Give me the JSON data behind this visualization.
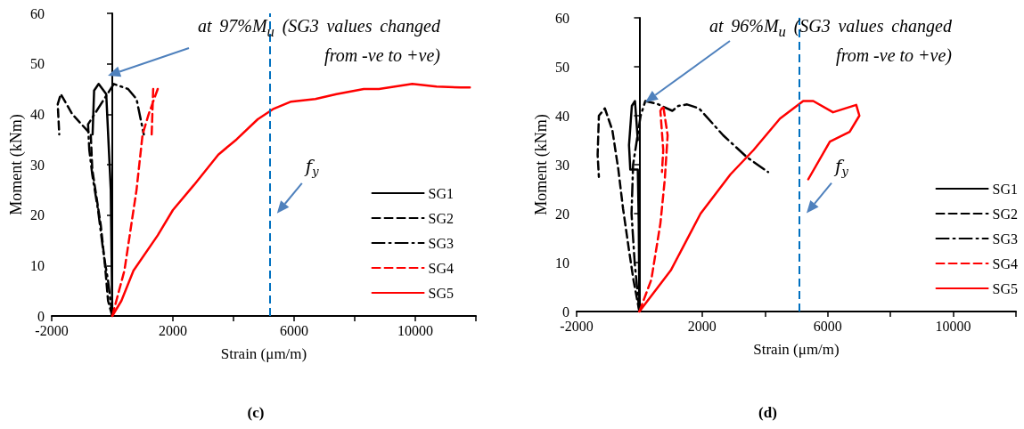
{
  "chart_data": [
    {
      "type": "line",
      "xlabel": "Strain (μm/m)",
      "ylabel": "Moment (kNm)",
      "xlim": [
        -2000,
        12000
      ],
      "xticks": [
        -2000,
        2000,
        {
          "value": 4000,
          "label": null
        },
        6000,
        {
          "value": 8000,
          "label": null
        },
        10000,
        {
          "value": 12000,
          "label": null
        }
      ],
      "ylim": [
        0,
        60
      ],
      "yticks": [
        0,
        10,
        20,
        30,
        40,
        50,
        60
      ],
      "grid": false,
      "legend": "bottom right",
      "marker": "none",
      "annotations": [
        "at 97%M$_{u}$ (SG3 values changed from -ve to +ve)",
        "(c)"
      ],
      "ref_lines": [
        {
          "axis": "x",
          "value": 5200,
          "label": "f$_{y}$",
          "color": "#0070c0",
          "line_style": "dashed"
        }
      ],
      "series": [
        {
          "name": "SG1",
          "color": "#000000",
          "line_style": "solid",
          "x": [
            0,
            -50,
            -200,
            -450,
            -600,
            -650
          ],
          "values": [
            0,
            25,
            44,
            46,
            44.7,
            36
          ]
        },
        {
          "name": "SG2",
          "color": "#000000",
          "line_style": "dashed",
          "x": [
            0,
            -140,
            -240,
            -380,
            -660,
            -710,
            -1320,
            -1510,
            -1700,
            -1800,
            -1750
          ],
          "values": [
            0,
            3,
            10,
            18,
            29,
            36,
            40,
            42,
            44,
            42,
            36
          ]
        },
        {
          "name": "SG3",
          "color": "#000000",
          "line_style": "dashdot",
          "x": [
            0,
            -140,
            -280,
            -470,
            -660,
            -760,
            -800,
            50,
            520,
            800,
            1040
          ],
          "values": [
            0,
            7,
            12,
            21,
            28,
            33,
            38,
            46,
            45,
            43,
            36
          ]
        },
        {
          "name": "SG4",
          "color": "#ff0000",
          "line_style": "dashed",
          "x": [
            0,
            400,
            800,
            1000,
            1200,
            1500,
            1350,
            1300
          ],
          "values": [
            0,
            9,
            25,
            36,
            40,
            45,
            45,
            36
          ]
        },
        {
          "name": "SG5",
          "color": "#ff0000",
          "line_style": "solid",
          "x": [
            0,
            300,
            700,
            1500,
            2000,
            2700,
            3500,
            4100,
            4800,
            5300,
            5900,
            6700,
            7400,
            8300,
            8800,
            9900,
            10700,
            11500,
            11800
          ],
          "values": [
            0,
            3,
            9,
            16,
            21,
            26,
            32,
            35,
            39,
            41,
            42.5,
            43,
            44,
            45,
            45,
            46,
            45.5,
            45.3,
            45.3
          ]
        }
      ]
    },
    {
      "type": "line",
      "xlabel": "Strain (μm/m)",
      "ylabel": "Moment (kNm)",
      "xlim": [
        -2000,
        12000
      ],
      "xticks": [
        -2000,
        2000,
        {
          "value": 4000,
          "label": null
        },
        6000,
        {
          "value": 8000,
          "label": null
        },
        10000,
        {
          "value": 12000,
          "label": null
        }
      ],
      "ylim": [
        0,
        60
      ],
      "yticks": [
        0,
        10,
        20,
        30,
        40,
        50,
        60
      ],
      "grid": false,
      "legend": "bottom right",
      "marker": "none",
      "annotations": [
        "at 96%M$_{u}$ (SG3 values changed from -ve to +ve)",
        "(d)"
      ],
      "ref_lines": [
        {
          "axis": "x",
          "value": 5100,
          "label": "f$_{y}$",
          "color": "#0070c0",
          "line_style": "dashed"
        }
      ],
      "series": [
        {
          "name": "SG1",
          "color": "#000000",
          "line_style": "solid",
          "x": [
            0,
            -20,
            -50,
            -290,
            -330,
            -240,
            -140,
            -50
          ],
          "values": [
            0,
            18,
            29,
            29,
            34,
            42,
            43,
            35
          ]
        },
        {
          "name": "SG2",
          "color": "#000000",
          "line_style": "dashed",
          "x": [
            0,
            -190,
            -330,
            -520,
            -670,
            -860,
            -1100,
            -1290,
            -1330,
            -1290
          ],
          "values": [
            0,
            6.5,
            12.5,
            21,
            29,
            37,
            41.5,
            40,
            32,
            27.5
          ]
        },
        {
          "name": "SG3",
          "color": "#000000",
          "line_style": "dashdot",
          "x": [
            0,
            -150,
            -250,
            -200,
            40,
            190,
            570,
            1050,
            1240,
            1520,
            1900,
            2670,
            3430,
            4100
          ],
          "values": [
            0,
            10,
            20,
            30,
            40,
            43,
            42.4,
            41,
            42,
            42.3,
            41.5,
            36,
            31.5,
            28.5
          ]
        },
        {
          "name": "SG4",
          "color": "#ff0000",
          "line_style": "dashed",
          "x": [
            0,
            380,
            670,
            810,
            900,
            760,
            670,
            760,
            720
          ],
          "values": [
            0,
            6.5,
            18,
            27,
            36,
            42,
            41,
            33,
            28.5
          ]
        },
        {
          "name": "SG5",
          "color": "#ff0000",
          "line_style": "solid",
          "x": [
            0,
            1000,
            1950,
            2900,
            3640,
            4480,
            5220,
            5540,
            6170,
            6910,
            7010,
            6700,
            6070,
            5380
          ],
          "values": [
            0,
            8.4,
            20,
            28,
            33,
            39.4,
            43,
            43,
            40.7,
            42.2,
            40,
            36.7,
            34.7,
            27
          ]
        }
      ]
    }
  ]
}
